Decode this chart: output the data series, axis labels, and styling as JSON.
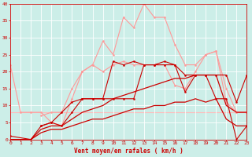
{
  "title": "",
  "xlabel": "Vent moyen/en rafales ( km/h )",
  "ylabel": "",
  "xlim": [
    0,
    23
  ],
  "ylim": [
    0,
    40
  ],
  "xticks": [
    0,
    1,
    2,
    3,
    4,
    5,
    6,
    7,
    8,
    9,
    10,
    11,
    12,
    13,
    14,
    15,
    16,
    17,
    18,
    19,
    20,
    21,
    22,
    23
  ],
  "yticks": [
    0,
    5,
    10,
    15,
    20,
    25,
    30,
    35,
    40
  ],
  "background_color": "#cceee8",
  "grid_color": "#ffffff",
  "series": [
    {
      "x": [
        3,
        4,
        5,
        6,
        7,
        8,
        9,
        10,
        11,
        12,
        13,
        14,
        15,
        16,
        17,
        18,
        19,
        20,
        21,
        22,
        23
      ],
      "y": [
        7,
        8,
        8,
        15,
        20,
        22,
        29,
        25,
        36,
        33,
        40,
        36,
        36,
        28,
        22,
        22,
        25,
        26,
        15,
        8,
        8
      ],
      "color": "#ff9999",
      "lw": 0.8,
      "marker": "o",
      "ms": 1.5,
      "zorder": 2
    },
    {
      "x": [
        0,
        1,
        2,
        3,
        4,
        5,
        6,
        7,
        8,
        9,
        10,
        11,
        12,
        13,
        14,
        15,
        16,
        17,
        18,
        19,
        20,
        21,
        22,
        23
      ],
      "y": [
        22,
        8,
        8,
        8,
        5,
        4,
        12,
        20,
        22,
        20,
        22,
        23,
        22,
        22,
        22,
        22,
        16,
        15,
        20,
        25,
        26,
        11,
        8,
        8
      ],
      "color": "#ff9999",
      "lw": 0.8,
      "marker": "o",
      "ms": 1.5,
      "zorder": 2
    },
    {
      "x": [
        0,
        1,
        2,
        3,
        4,
        5,
        6,
        7,
        8,
        9,
        10,
        11,
        12,
        13,
        14,
        15,
        16,
        17,
        18,
        19,
        20,
        21,
        22,
        23
      ],
      "y": [
        8,
        8,
        8,
        8,
        8,
        8,
        8,
        8,
        8,
        8,
        8,
        8,
        8,
        8,
        8,
        8,
        8,
        8,
        8,
        8,
        8,
        8,
        8,
        8
      ],
      "color": "#ffbbbb",
      "lw": 0.8,
      "marker": null,
      "ms": 0,
      "zorder": 1
    },
    {
      "x": [
        0,
        1,
        2,
        3,
        4,
        5,
        6,
        7,
        8,
        9,
        10,
        11,
        12,
        13,
        14,
        15,
        16,
        17,
        18,
        19,
        20,
        21,
        22,
        23
      ],
      "y": [
        0,
        0,
        0,
        3,
        4,
        4,
        6,
        8,
        9,
        10,
        12,
        13,
        14,
        15,
        16,
        17,
        18,
        18,
        19,
        19,
        19,
        10,
        8,
        8
      ],
      "color": "#cc0000",
      "lw": 0.9,
      "marker": null,
      "ms": 0,
      "zorder": 3
    },
    {
      "x": [
        0,
        1,
        2,
        3,
        4,
        5,
        6,
        7,
        8,
        9,
        10,
        11,
        12,
        13,
        14,
        15,
        16,
        17,
        18,
        19,
        20,
        21,
        22,
        23
      ],
      "y": [
        0,
        0,
        0,
        2,
        3,
        3,
        4,
        5,
        6,
        6,
        7,
        8,
        9,
        9,
        10,
        10,
        11,
        11,
        12,
        11,
        12,
        6,
        4,
        4
      ],
      "color": "#cc0000",
      "lw": 0.9,
      "marker": null,
      "ms": 0,
      "zorder": 3
    },
    {
      "x": [
        0,
        2,
        3,
        4,
        5,
        6,
        7,
        8,
        9,
        10,
        11,
        12,
        13,
        14,
        15,
        16,
        17,
        18,
        19,
        20,
        21,
        22,
        23
      ],
      "y": [
        1,
        0,
        4,
        5,
        4,
        8,
        12,
        12,
        12,
        23,
        22,
        23,
        22,
        22,
        23,
        22,
        14,
        19,
        19,
        12,
        12,
        0,
        4
      ],
      "color": "#cc0000",
      "lw": 0.8,
      "marker": "o",
      "ms": 1.5,
      "zorder": 4
    },
    {
      "x": [
        3,
        4,
        5,
        6,
        7,
        8,
        9,
        10,
        11,
        12,
        13,
        14,
        15,
        16,
        17,
        18,
        19,
        20,
        21,
        22,
        23
      ],
      "y": [
        4,
        5,
        8,
        11,
        12,
        12,
        12,
        12,
        12,
        12,
        22,
        22,
        22,
        22,
        19,
        19,
        19,
        19,
        19,
        11,
        19
      ],
      "color": "#cc0000",
      "lw": 0.8,
      "marker": "o",
      "ms": 1.5,
      "zorder": 4
    }
  ]
}
